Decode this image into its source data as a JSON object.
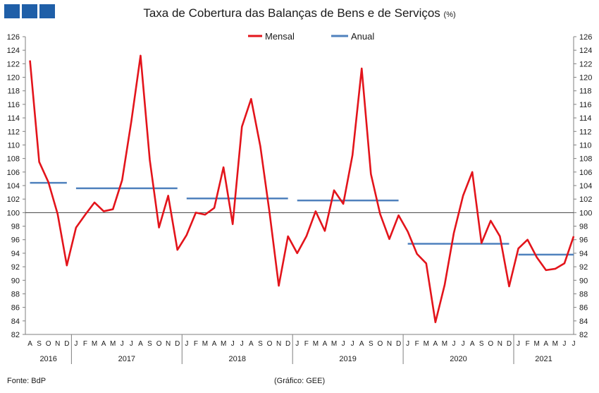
{
  "header": {
    "title": "Taxa de Cobertura das Balanças de Bens e de Serviços",
    "unit": "(%)",
    "logo_icon": "gee-logo-icon"
  },
  "footer": {
    "source": "Fonte: BdP",
    "credit": "(Gráfico: GEE)"
  },
  "chart_data": {
    "type": "line",
    "title": "Taxa de Cobertura das Balanças de Bens e de Serviços",
    "ylim": [
      82,
      126
    ],
    "ytick_step": 2,
    "reference_line": 100,
    "months": [
      "A",
      "S",
      "O",
      "N",
      "D",
      "J",
      "F",
      "M",
      "A",
      "M",
      "J",
      "J",
      "A",
      "S",
      "O",
      "N",
      "D",
      "J",
      "F",
      "M",
      "A",
      "M",
      "J",
      "J",
      "A",
      "S",
      "O",
      "N",
      "D",
      "J",
      "F",
      "M",
      "A",
      "M",
      "J",
      "J",
      "A",
      "S",
      "O",
      "N",
      "D",
      "J",
      "F",
      "M",
      "A",
      "M",
      "J",
      "J",
      "A",
      "S",
      "O",
      "N",
      "D",
      "J",
      "F",
      "M",
      "A",
      "M",
      "J",
      "J"
    ],
    "years": [
      {
        "label": "2016",
        "start": 0,
        "count": 5
      },
      {
        "label": "2017",
        "start": 5,
        "count": 12
      },
      {
        "label": "2018",
        "start": 17,
        "count": 12
      },
      {
        "label": "2019",
        "start": 29,
        "count": 12
      },
      {
        "label": "2020",
        "start": 41,
        "count": 12
      },
      {
        "label": "2021",
        "start": 53,
        "count": 7
      }
    ],
    "series": [
      {
        "name": "Mensal",
        "color": "#e3141b",
        "type": "line",
        "values": [
          122.5,
          107.5,
          104.5,
          99.8,
          92.2,
          97.8,
          99.7,
          101.5,
          100.2,
          100.5,
          104.8,
          113.5,
          123.2,
          107.8,
          97.8,
          102.5,
          94.5,
          96.7,
          100.0,
          99.7,
          100.7,
          106.7,
          98.3,
          112.7,
          116.8,
          109.8,
          100.0,
          89.2,
          96.5,
          94.0,
          96.5,
          100.2,
          97.3,
          103.3,
          101.3,
          108.5,
          121.3,
          105.7,
          99.8,
          96.1,
          99.6,
          97.2,
          93.9,
          92.5,
          83.8,
          89.3,
          97.0,
          102.5,
          106.0,
          95.5,
          98.8,
          96.5,
          89.1,
          94.7,
          96.0,
          93.4,
          91.5,
          91.7,
          92.5,
          96.5
        ]
      },
      {
        "name": "Anual",
        "color": "#4f81bd",
        "type": "step",
        "segments": [
          {
            "year": "2016",
            "start": 0,
            "end": 4,
            "value": 104.4
          },
          {
            "year": "2017",
            "start": 5,
            "end": 16,
            "value": 103.6
          },
          {
            "year": "2018",
            "start": 17,
            "end": 28,
            "value": 102.1
          },
          {
            "year": "2019",
            "start": 29,
            "end": 40,
            "value": 101.8
          },
          {
            "year": "2020",
            "start": 41,
            "end": 52,
            "value": 95.4
          },
          {
            "year": "2021",
            "start": 53,
            "end": 59,
            "value": 93.8
          }
        ]
      }
    ]
  }
}
